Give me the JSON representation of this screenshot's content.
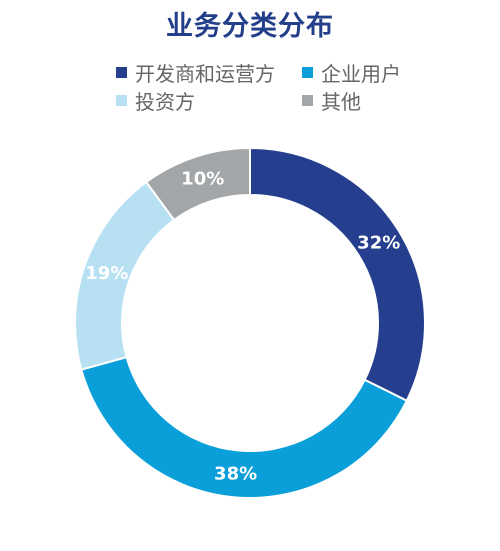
{
  "chart_data": {
    "type": "pie",
    "title": "业务分类分布",
    "categories": [
      "开发商和运营方",
      "企业用户",
      "投资方",
      "其他"
    ],
    "values": [
      32,
      38,
      19,
      10
    ],
    "labels": [
      "32%",
      "38%",
      "19%",
      "10%"
    ],
    "colors": [
      "#253f8e",
      "#0b9fd9",
      "#b7e1f3",
      "#a3a6a8"
    ],
    "legend_position": "top",
    "donut": true
  }
}
